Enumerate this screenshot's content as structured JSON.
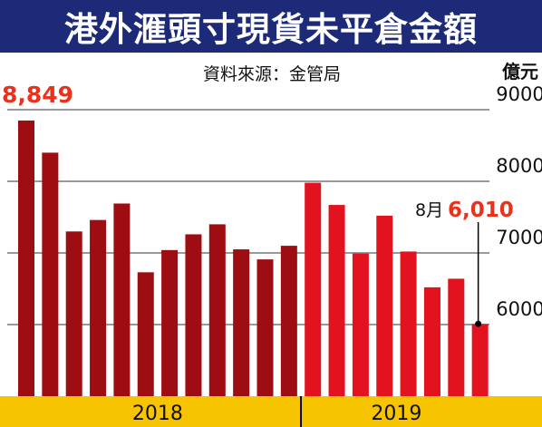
{
  "chart_data": {
    "type": "bar",
    "title": "港外滙頭寸現貨未平倉金額",
    "subtitle": "資料來源：金管局",
    "yunit": "億元",
    "ylim": [
      5000,
      9500
    ],
    "yticks": [
      6000,
      7000,
      8000,
      9000
    ],
    "yticklabels": [
      "6000",
      "7000",
      "8000",
      "9000"
    ],
    "values": [
      8849,
      8400,
      7300,
      7460,
      7690,
      6730,
      7040,
      7260,
      7400,
      7050,
      6910,
      7100,
      7980,
      7670,
      6990,
      7520,
      7020,
      6520,
      6640,
      6010
    ],
    "year_groups": [
      {
        "label": "2018",
        "count": 12
      },
      {
        "label": "2019",
        "count": 8
      }
    ],
    "annotations": {
      "max": {
        "value_label": "8,849",
        "index": 0
      },
      "last": {
        "month_label": "8月",
        "value_label": "6,010",
        "index": 19
      }
    },
    "colors": {
      "title_bg": "#1c2a78",
      "bar_2018": "#9e0d12",
      "bar_2019": "#e2121f",
      "accent_text": "#e8321c",
      "axis_band": "#f6c400",
      "grid": "#333333"
    }
  }
}
